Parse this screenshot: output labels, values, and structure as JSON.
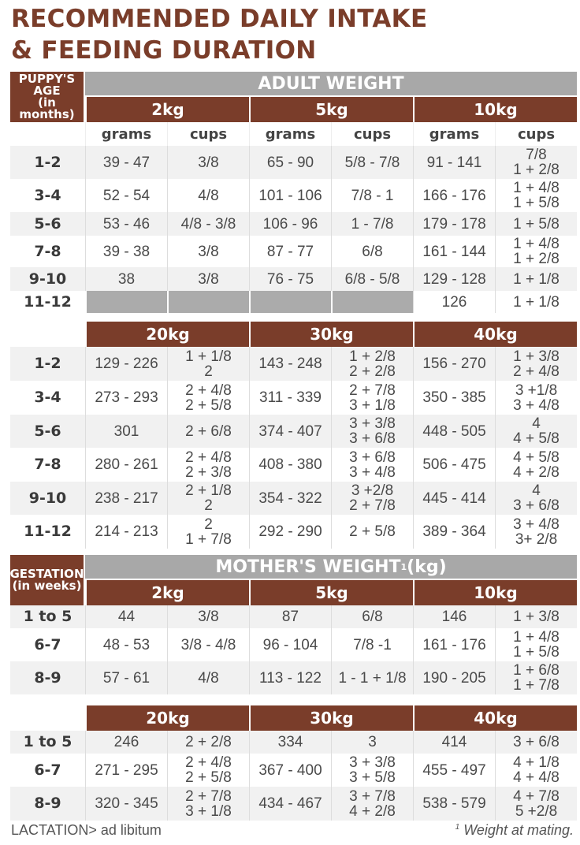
{
  "title": {
    "line1": "RECOMMENDED DAILY INTAKE",
    "line2": "& FEEDING DURATION"
  },
  "colors": {
    "brown": "#7a3d2a",
    "gray_header": "#a8a8a8",
    "row_shade": "#f1f1f1"
  },
  "puppy": {
    "label": "PUPPY'S\nAGE\n(in months)",
    "header": "ADULT WEIGHT",
    "subheaders": [
      "grams",
      "cups",
      "grams",
      "cups",
      "grams",
      "cups"
    ],
    "blocks": [
      {
        "weights": [
          "2kg",
          "5kg",
          "10kg"
        ],
        "rows": [
          {
            "age": "1-2",
            "cells": [
              "39 - 47",
              "3/8",
              "65 - 90",
              "5/8 - 7/8",
              "91 - 141",
              "7/8\n1 + 2/8"
            ]
          },
          {
            "age": "3-4",
            "cells": [
              "52 - 54",
              "4/8",
              "101 - 106",
              "7/8 - 1",
              "166 - 176",
              "1 + 4/8\n1 + 5/8"
            ]
          },
          {
            "age": "5-6",
            "cells": [
              "53 - 46",
              "4/8 - 3/8",
              "106 - 96",
              "1 - 7/8",
              "179 - 178",
              "1 + 5/8"
            ]
          },
          {
            "age": "7-8",
            "cells": [
              "39 - 38",
              "3/8",
              "87 - 77",
              "6/8",
              "161 - 144",
              "1 + 4/8\n1 + 2/8"
            ]
          },
          {
            "age": "9-10",
            "cells": [
              "38",
              "3/8",
              "76 - 75",
              "6/8 - 5/8",
              "129 - 128",
              "1 + 1/8"
            ]
          },
          {
            "age": "11-12",
            "cells": [
              null,
              null,
              null,
              null,
              "126",
              "1 + 1/8"
            ]
          }
        ]
      },
      {
        "weights": [
          "20kg",
          "30kg",
          "40kg"
        ],
        "rows": [
          {
            "age": "1-2",
            "cells": [
              "129 - 226",
              "1 + 1/8\n2",
              "143 - 248",
              "1 + 2/8\n2 + 2/8",
              "156 - 270",
              "1 + 3/8\n2 + 4/8"
            ]
          },
          {
            "age": "3-4",
            "cells": [
              "273 - 293",
              "2 + 4/8\n2 + 5/8",
              "311 - 339",
              "2 + 7/8\n3 + 1/8",
              "350 - 385",
              "3 +1/8\n3 + 4/8"
            ]
          },
          {
            "age": "5-6",
            "cells": [
              "301",
              "2 + 6/8",
              "374 - 407",
              "3 + 3/8\n3 + 6/8",
              "448 - 505",
              "4\n4 + 5/8"
            ]
          },
          {
            "age": "7-8",
            "cells": [
              "280 - 261",
              "2 + 4/8\n2 + 3/8",
              "408 - 380",
              "3 + 6/8\n3 + 4/8",
              "506 - 475",
              "4 + 5/8\n4 + 2/8"
            ]
          },
          {
            "age": "9-10",
            "cells": [
              "238 - 217",
              "2 + 1/8\n2",
              "354 - 322",
              "3 +2/8\n2 + 7/8",
              "445 - 414",
              "4\n3 + 6/8"
            ]
          },
          {
            "age": "11-12",
            "cells": [
              "214 - 213",
              "2\n1 + 7/8",
              "292 - 290",
              "2 + 5/8",
              "389 - 364",
              "3 + 4/8\n3+  2/8"
            ]
          }
        ]
      }
    ]
  },
  "gestation": {
    "label": "GESTATION\n(in weeks)",
    "header": "MOTHER'S WEIGHT",
    "header_sup": "1",
    "header_unit": "(kg)",
    "blocks": [
      {
        "weights": [
          "2kg",
          "5kg",
          "10kg"
        ],
        "rows": [
          {
            "age": "1 to 5",
            "cells": [
              "44",
              "3/8",
              "87",
              "6/8",
              "146",
              "1 + 3/8"
            ]
          },
          {
            "age": "6-7",
            "cells": [
              "48 - 53",
              "3/8 -  4/8",
              "96 - 104",
              "7/8 -1",
              "161 - 176",
              "1 + 4/8\n1 + 5/8"
            ]
          },
          {
            "age": "8-9",
            "cells": [
              "57 - 61",
              "4/8",
              "113 - 122",
              "1 - 1 + 1/8",
              "190 - 205",
              "1 + 6/8\n1 + 7/8"
            ]
          }
        ]
      },
      {
        "weights": [
          "20kg",
          "30kg",
          "40kg"
        ],
        "rows": [
          {
            "age": "1 to 5",
            "cells": [
              "246",
              "2 + 2/8",
              "334",
              "3",
              "414",
              "3 + 6/8"
            ]
          },
          {
            "age": "6-7",
            "cells": [
              "271 - 295",
              "2 + 4/8\n2 + 5/8",
              "367 - 400",
              "3 + 3/8\n3 + 5/8",
              "455 - 497",
              "4 + 1/8\n4 + 4/8"
            ]
          },
          {
            "age": "8-9",
            "cells": [
              "320 - 345",
              "2 + 7/8\n3 + 1/8",
              "434 - 467",
              "3 + 7/8\n4 + 2/8",
              "538 - 579",
              "4 + 7/8\n5 +2/8"
            ]
          }
        ]
      }
    ]
  },
  "footer": {
    "lactation": "LACTATION> ad libitum",
    "note_sup": "1",
    "note": "Weight at mating."
  }
}
